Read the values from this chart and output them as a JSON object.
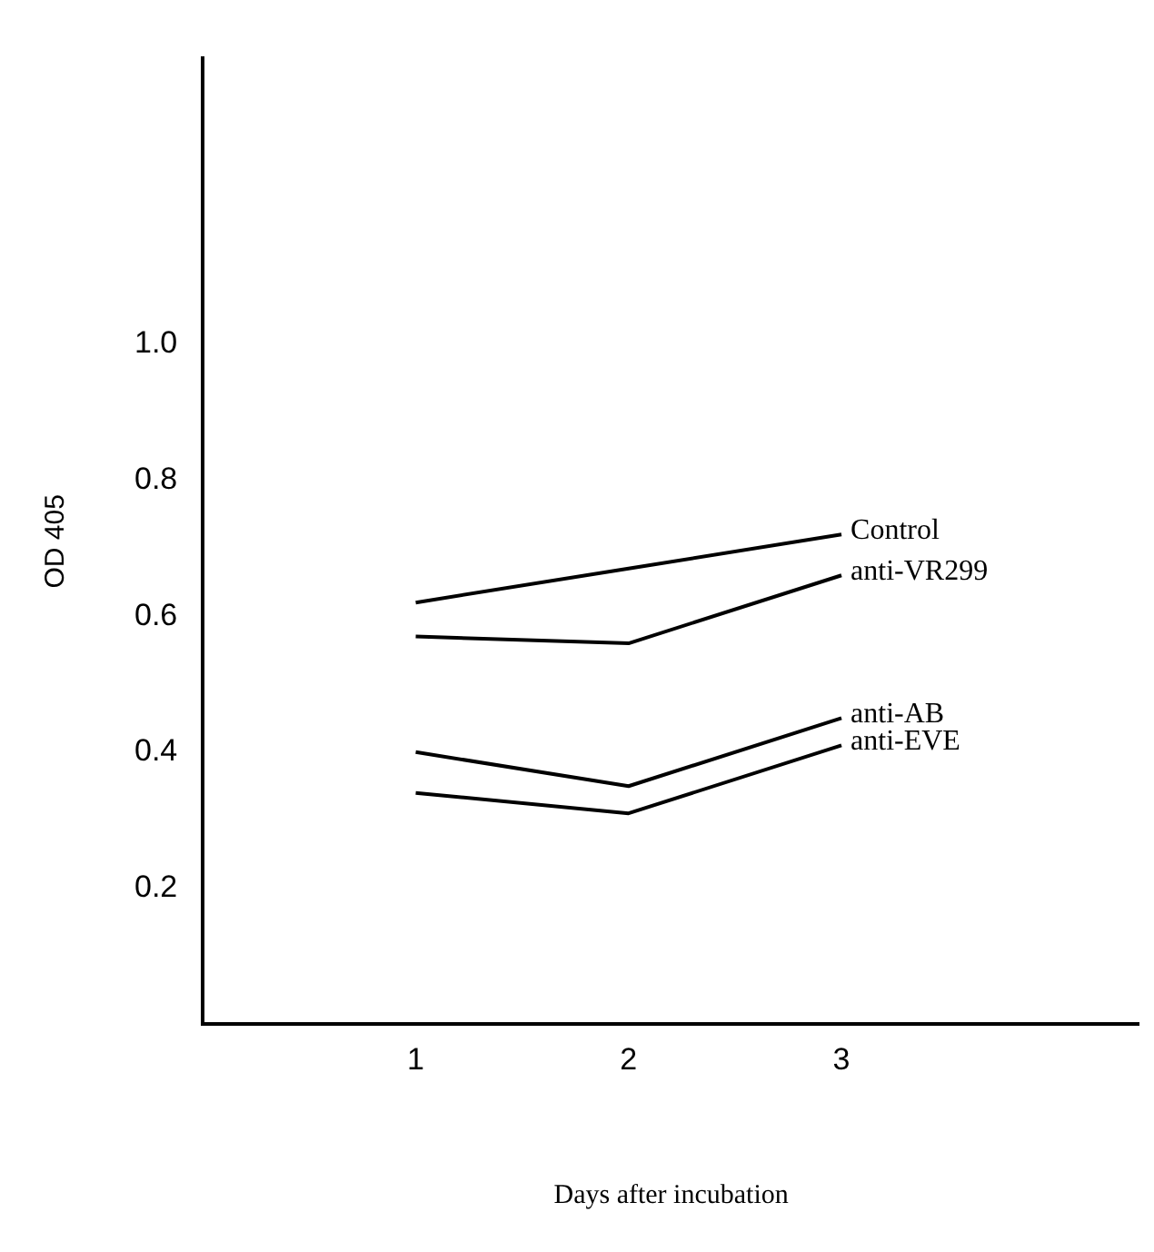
{
  "chart_data": {
    "type": "line",
    "xlabel": "Days after incubation",
    "ylabel": "OD 405",
    "x": [
      1,
      2,
      3
    ],
    "series": [
      {
        "name": "Control",
        "color": "#000000",
        "values": [
          0.62,
          0.67,
          0.72
        ]
      },
      {
        "name": "anti-VR299",
        "color": "#000000",
        "values": [
          0.57,
          0.56,
          0.66
        ]
      },
      {
        "name": "anti-AB",
        "color": "#000000",
        "values": [
          0.4,
          0.35,
          0.45
        ]
      },
      {
        "name": "anti-EVE",
        "color": "#000000",
        "values": [
          0.34,
          0.31,
          0.41
        ]
      }
    ],
    "xlim": [
      0,
      4.4
    ],
    "xticks": [
      1,
      2,
      3
    ],
    "ylim": [
      0,
      1.42
    ],
    "yticks": [
      0.2,
      0.4,
      0.6,
      0.8,
      {
        "value": 1,
        "label": "1.0"
      }
    ],
    "grid": false,
    "legend": false,
    "marker": "none",
    "line_style": "solid"
  }
}
